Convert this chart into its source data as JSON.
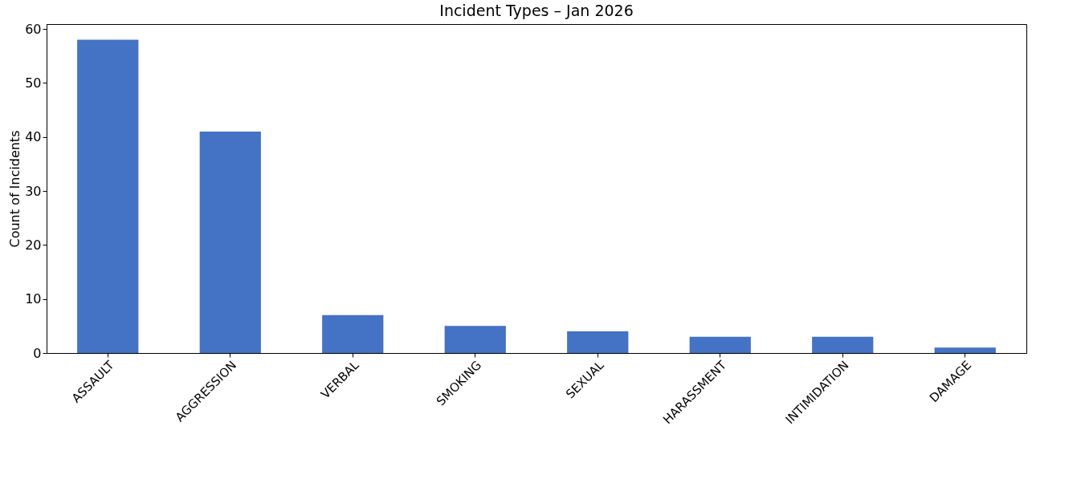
{
  "chart_data": {
    "type": "bar",
    "title": "Incident Types – Jan 2026",
    "ylabel": "Count of Incidents",
    "categories": [
      "ASSAULT",
      "AGGRESSION",
      "VERBAL",
      "SMOKING",
      "SEXUAL",
      "HARASSMENT",
      "INTIMIDATION",
      "DAMAGE"
    ],
    "values": [
      58,
      41,
      7,
      5,
      4,
      3,
      3,
      1
    ],
    "color": "#4472c4",
    "ylim": [
      0,
      60.9
    ],
    "yticks": [
      0,
      10,
      20,
      30,
      40,
      50,
      60
    ],
    "grid": false
  }
}
